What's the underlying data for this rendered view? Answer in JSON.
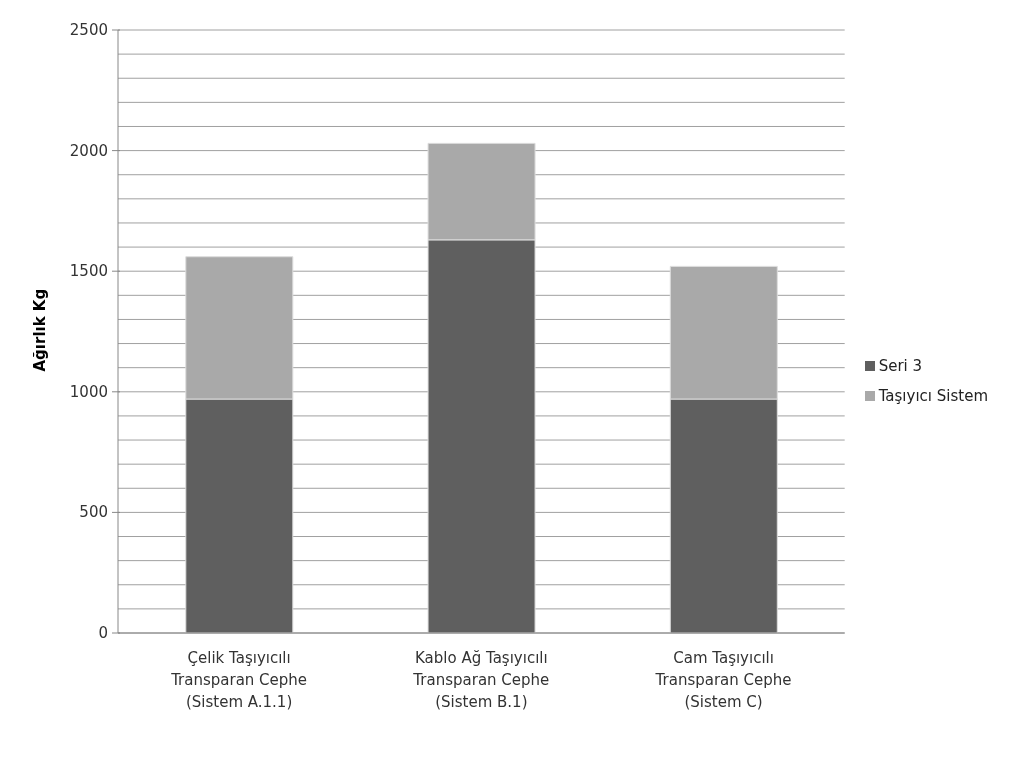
{
  "chart_data": {
    "type": "bar",
    "stacked": true,
    "ylabel": "Ağırlık  Kg",
    "categories": [
      "Çelik Taşıyıcılı\nTransparan Cephe\n(Sistem A.1.1)",
      "Kablo Ağ Taşıyıcılı\nTransparan Cephe\n(Sistem B.1)",
      "Cam Taşıyıcılı\nTransparan Cephe\n(Sistem C)"
    ],
    "series": [
      {
        "name": "Seri 3",
        "color": "#5f5f5f",
        "values": [
          970,
          1630,
          970
        ]
      },
      {
        "name": "Taşıyıcı Sistem",
        "color": "#a9a9a9",
        "values": [
          590,
          400,
          550
        ]
      }
    ],
    "ylim": [
      0,
      2500
    ],
    "yticks": [
      0,
      {
        "value": 100,
        "label": null
      },
      {
        "value": 200,
        "label": null
      },
      {
        "value": 300,
        "label": null
      },
      {
        "value": 400,
        "label": null
      },
      500,
      {
        "value": 600,
        "label": null
      },
      {
        "value": 700,
        "label": null
      },
      {
        "value": 800,
        "label": null
      },
      {
        "value": 900,
        "label": null
      },
      1000,
      {
        "value": 1100,
        "label": null
      },
      {
        "value": 1200,
        "label": null
      },
      {
        "value": 1300,
        "label": null
      },
      {
        "value": 1400,
        "label": null
      },
      1500,
      {
        "value": 1600,
        "label": null
      },
      {
        "value": 1700,
        "label": null
      },
      {
        "value": 1800,
        "label": null
      },
      {
        "value": 1900,
        "label": null
      },
      2000,
      {
        "value": 2100,
        "label": null
      },
      {
        "value": 2200,
        "label": null
      },
      {
        "value": 2300,
        "label": null
      },
      {
        "value": 2400,
        "label": null
      },
      2500
    ],
    "grid": "y",
    "legend": "right"
  }
}
